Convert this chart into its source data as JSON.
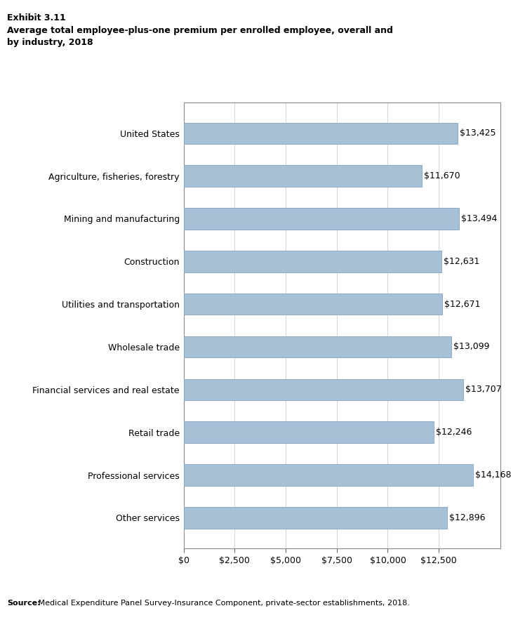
{
  "categories": [
    "United States",
    "Agriculture, fisheries, forestry",
    "Mining and manufacturing",
    "Construction",
    "Utilities and transportation",
    "Wholesale trade",
    "Financial services and real estate",
    "Retail trade",
    "Professional services",
    "Other services"
  ],
  "values": [
    13425,
    11670,
    13494,
    12631,
    12671,
    13099,
    13707,
    12246,
    14168,
    12896
  ],
  "bar_color": "#a8c0d6",
  "bar_edge_color": "#8aacc8",
  "title_line1": "Exhibit 3.11",
  "title_line2": "Average total employee-plus-one premium per enrolled employee, overall and\nby industry, 2018",
  "xlim": [
    0,
    15500
  ],
  "xtick_values": [
    0,
    2500,
    5000,
    7500,
    10000,
    12500
  ],
  "xtick_labels": [
    "$0",
    "$2,500",
    "$5,000",
    "$7,500",
    "$10,000",
    "$12,500"
  ],
  "source_bold": "Source:",
  "source_rest": " Medical Expenditure Panel Survey-Insurance Component, private-sector establishments, 2018.",
  "background_color": "#ffffff",
  "bar_height": 0.5,
  "label_fontsize": 9,
  "tick_fontsize": 9,
  "value_label_fontsize": 9,
  "title_fontsize": 9,
  "source_fontsize": 8
}
